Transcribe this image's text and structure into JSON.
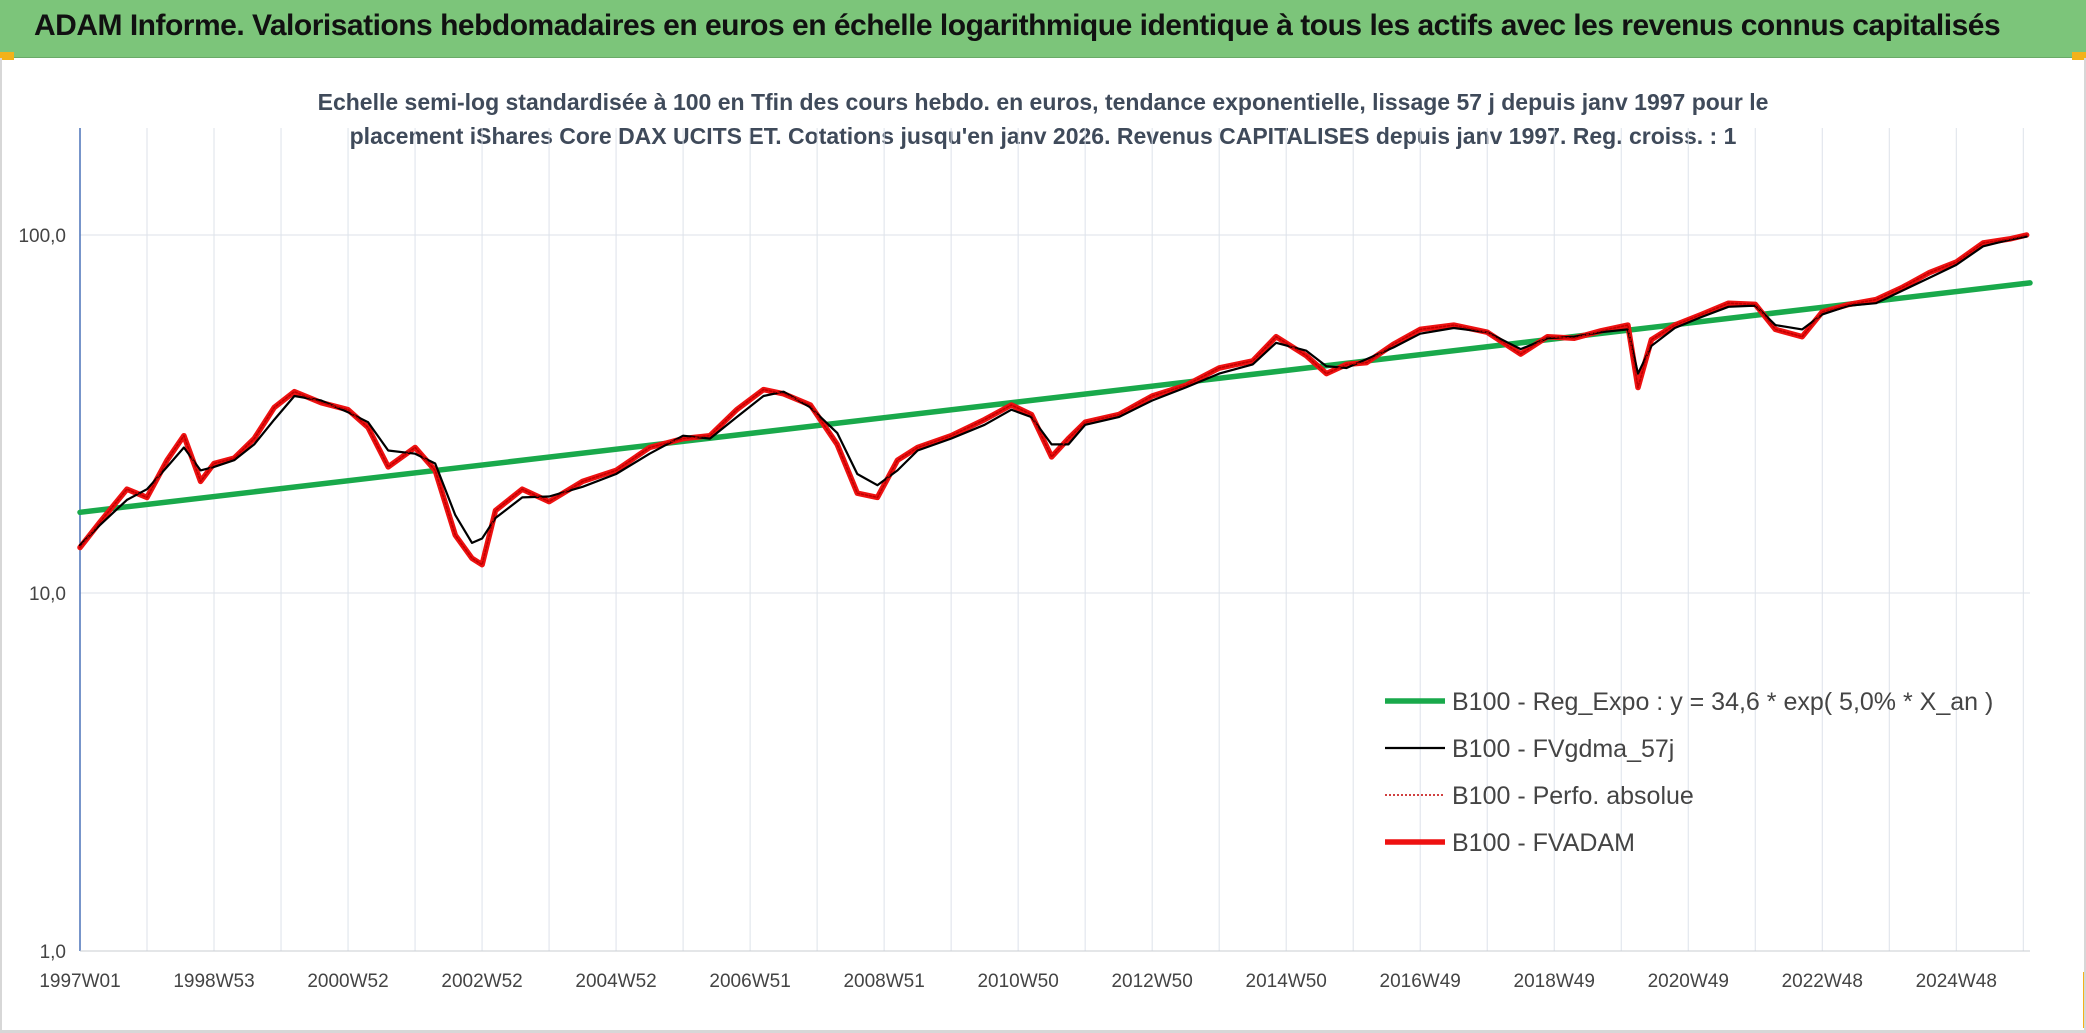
{
  "banner": {
    "title": "ADAM Informe. Valorisations hebdomadaires en euros en échelle logarithmique identique à tous les actifs avec les revenus connus capitalisés",
    "background": "#7cc57a",
    "corner_color": "#f3b21a"
  },
  "chart_data": {
    "type": "line",
    "title_line1": "Echelle semi-log standardisée à 100 en Tfin des cours hebdo. en euros, tendance exponentielle, lissage 57 j depuis janv 1997 pour le",
    "title_line2": "placement iShares Core DAX UCITS ET. Cotations jusqu'en janv 2026. Revenus CAPITALISES depuis janv 1997. Reg. croiss. : 1",
    "y_scale": "log",
    "ylim": [
      1,
      200
    ],
    "y_ticks": [
      {
        "value": 1,
        "label": "1,0"
      },
      {
        "value": 10,
        "label": "10,0"
      },
      {
        "value": 100,
        "label": "100,0"
      }
    ],
    "xlim": [
      1997.0,
      2026.1
    ],
    "x_ticks": [
      {
        "value": 1997.0,
        "label": "1997W01"
      },
      {
        "value": 1999.0,
        "label": "1998W53"
      },
      {
        "value": 2001.0,
        "label": "2000W52"
      },
      {
        "value": 2003.0,
        "label": "2002W52"
      },
      {
        "value": 2005.0,
        "label": "2004W52"
      },
      {
        "value": 2007.0,
        "label": "2006W51"
      },
      {
        "value": 2009.0,
        "label": "2008W51"
      },
      {
        "value": 2011.0,
        "label": "2010W50"
      },
      {
        "value": 2013.0,
        "label": "2012W50"
      },
      {
        "value": 2015.0,
        "label": "2014W50"
      },
      {
        "value": 2017.0,
        "label": "2016W49"
      },
      {
        "value": 2019.0,
        "label": "2018W49"
      },
      {
        "value": 2021.0,
        "label": "2020W49"
      },
      {
        "value": 2023.0,
        "label": "2022W48"
      },
      {
        "value": 2025.0,
        "label": "2024W48"
      }
    ],
    "grid": true,
    "legend_position": "bottom-right",
    "series": [
      {
        "name": "B100 - Reg_Expo : y = 34,6 * exp( 5,0% *  X_an )",
        "color": "#19a94b",
        "style": "solid-thick",
        "x": [
          1997.0,
          2026.1
        ],
        "y": [
          16.8,
          73.5
        ]
      },
      {
        "name": "B100 - FVgdma_57j",
        "color": "#000000",
        "style": "solid-thin",
        "x": [
          1997.0,
          1997.3,
          1997.7,
          1998.0,
          1998.3,
          1998.55,
          1998.8,
          1999.0,
          1999.3,
          1999.6,
          1999.9,
          2000.2,
          2000.6,
          2001.0,
          2001.3,
          2001.6,
          2002.0,
          2002.3,
          2002.6,
          2002.85,
          2003.0,
          2003.2,
          2003.6,
          2004.0,
          2004.5,
          2005.0,
          2005.5,
          2006.0,
          2006.4,
          2006.8,
          2007.2,
          2007.5,
          2007.9,
          2008.3,
          2008.6,
          2008.9,
          2009.2,
          2009.5,
          2010.0,
          2010.5,
          2010.9,
          2011.2,
          2011.5,
          2011.75,
          2012.0,
          2012.5,
          2013.0,
          2013.5,
          2014.0,
          2014.5,
          2014.85,
          2015.3,
          2015.6,
          2015.9,
          2016.2,
          2016.6,
          2017.0,
          2017.5,
          2018.0,
          2018.5,
          2018.9,
          2019.3,
          2019.7,
          2020.1,
          2020.25,
          2020.45,
          2020.8,
          2021.2,
          2021.6,
          2022.0,
          2022.3,
          2022.7,
          2023.0,
          2023.4,
          2023.8,
          2024.2,
          2024.6,
          2025.0,
          2025.4,
          2025.8,
          2026.05
        ],
        "y": [
          13.6,
          15.5,
          18.2,
          19.5,
          22.5,
          25.5,
          22.0,
          22.5,
          23.5,
          26.0,
          30.5,
          35.5,
          34.5,
          32.0,
          30.0,
          25.0,
          24.5,
          23.0,
          16.5,
          13.8,
          14.2,
          16.2,
          18.5,
          18.6,
          19.8,
          21.5,
          24.5,
          27.5,
          27.0,
          31.0,
          35.5,
          36.5,
          33.0,
          28.0,
          21.5,
          20.0,
          22.0,
          25.0,
          27.0,
          29.5,
          32.5,
          31.0,
          26.0,
          26.0,
          29.5,
          31.0,
          34.5,
          37.5,
          41.0,
          43.5,
          50.0,
          47.5,
          43.0,
          42.5,
          45.0,
          48.5,
          53.0,
          55.0,
          53.5,
          48.0,
          51.5,
          52.0,
          53.5,
          54.5,
          41.0,
          49.0,
          55.0,
          59.0,
          63.0,
          63.5,
          56.0,
          54.5,
          60.0,
          63.5,
          64.5,
          70.0,
          76.0,
          82.5,
          93.0,
          97.0,
          99.0
        ]
      },
      {
        "name": "B100 - Perfo. absolue",
        "color": "#c00000",
        "style": "dotted",
        "x": [
          1997.0,
          1997.3,
          1997.7,
          1998.0,
          1998.3,
          1998.55,
          1998.8,
          1999.0,
          1999.3,
          1999.6,
          1999.9,
          2000.2,
          2000.6,
          2001.0,
          2001.3,
          2001.6,
          2002.0,
          2002.3,
          2002.6,
          2002.85,
          2003.0,
          2003.2,
          2003.6,
          2004.0,
          2004.5,
          2005.0,
          2005.5,
          2006.0,
          2006.4,
          2006.8,
          2007.2,
          2007.5,
          2007.9,
          2008.3,
          2008.6,
          2008.9,
          2009.2,
          2009.5,
          2010.0,
          2010.5,
          2010.9,
          2011.2,
          2011.5,
          2011.75,
          2012.0,
          2012.5,
          2013.0,
          2013.5,
          2014.0,
          2014.5,
          2014.85,
          2015.3,
          2015.6,
          2015.9,
          2016.2,
          2016.6,
          2017.0,
          2017.5,
          2018.0,
          2018.5,
          2018.9,
          2019.3,
          2019.7,
          2020.1,
          2020.25,
          2020.45,
          2020.8,
          2021.2,
          2021.6,
          2022.0,
          2022.3,
          2022.7,
          2023.0,
          2023.4,
          2023.8,
          2024.2,
          2024.6,
          2025.0,
          2025.4,
          2025.8,
          2026.05
        ],
        "y": [
          13.4,
          15.8,
          19.5,
          18.5,
          23.5,
          27.5,
          20.5,
          23.0,
          23.8,
          27.0,
          33.0,
          36.5,
          34.0,
          32.5,
          29.0,
          22.5,
          25.5,
          22.0,
          14.5,
          12.5,
          12.0,
          17.0,
          19.5,
          18.0,
          20.5,
          22.0,
          25.5,
          27.0,
          27.5,
          32.5,
          37.0,
          36.0,
          33.5,
          26.0,
          19.0,
          18.5,
          23.5,
          25.5,
          27.5,
          30.5,
          33.5,
          31.5,
          24.0,
          27.0,
          30.0,
          31.5,
          35.5,
          38.0,
          42.5,
          44.5,
          52.0,
          46.0,
          41.0,
          43.5,
          44.0,
          49.5,
          54.5,
          56.0,
          53.5,
          46.5,
          52.0,
          51.5,
          54.0,
          56.0,
          37.5,
          51.0,
          56.0,
          60.0,
          64.5,
          64.0,
          54.5,
          52.0,
          61.0,
          64.0,
          66.0,
          71.5,
          78.5,
          84.0,
          95.0,
          97.5,
          100.0
        ]
      },
      {
        "name": "B100 - FVADAM",
        "color": "#ee1111",
        "style": "solid-thick",
        "x": [
          1997.0,
          1997.3,
          1997.7,
          1998.0,
          1998.3,
          1998.55,
          1998.8,
          1999.0,
          1999.3,
          1999.6,
          1999.9,
          2000.2,
          2000.6,
          2001.0,
          2001.3,
          2001.6,
          2002.0,
          2002.3,
          2002.6,
          2002.85,
          2003.0,
          2003.2,
          2003.6,
          2004.0,
          2004.5,
          2005.0,
          2005.5,
          2006.0,
          2006.4,
          2006.8,
          2007.2,
          2007.5,
          2007.9,
          2008.3,
          2008.6,
          2008.9,
          2009.2,
          2009.5,
          2010.0,
          2010.5,
          2010.9,
          2011.2,
          2011.5,
          2011.75,
          2012.0,
          2012.5,
          2013.0,
          2013.5,
          2014.0,
          2014.5,
          2014.85,
          2015.3,
          2015.6,
          2015.9,
          2016.2,
          2016.6,
          2017.0,
          2017.5,
          2018.0,
          2018.5,
          2018.9,
          2019.3,
          2019.7,
          2020.1,
          2020.25,
          2020.45,
          2020.8,
          2021.2,
          2021.6,
          2022.0,
          2022.3,
          2022.7,
          2023.0,
          2023.4,
          2023.8,
          2024.2,
          2024.6,
          2025.0,
          2025.4,
          2025.8,
          2026.05
        ],
        "y": [
          13.4,
          15.8,
          19.5,
          18.5,
          23.5,
          27.5,
          20.5,
          23.0,
          23.8,
          27.0,
          33.0,
          36.5,
          34.0,
          32.5,
          29.0,
          22.5,
          25.5,
          22.0,
          14.5,
          12.5,
          12.0,
          17.0,
          19.5,
          18.0,
          20.5,
          22.0,
          25.5,
          27.0,
          27.5,
          32.5,
          37.0,
          36.0,
          33.5,
          26.0,
          19.0,
          18.5,
          23.5,
          25.5,
          27.5,
          30.5,
          33.5,
          31.5,
          24.0,
          27.0,
          30.0,
          31.5,
          35.5,
          38.0,
          42.5,
          44.5,
          52.0,
          46.0,
          41.0,
          43.5,
          44.0,
          49.5,
          54.5,
          56.0,
          53.5,
          46.5,
          52.0,
          51.5,
          54.0,
          56.0,
          37.5,
          51.0,
          56.0,
          60.0,
          64.5,
          64.0,
          54.5,
          52.0,
          61.0,
          64.0,
          66.0,
          71.5,
          78.5,
          84.0,
          95.0,
          97.5,
          100.0
        ]
      }
    ]
  }
}
